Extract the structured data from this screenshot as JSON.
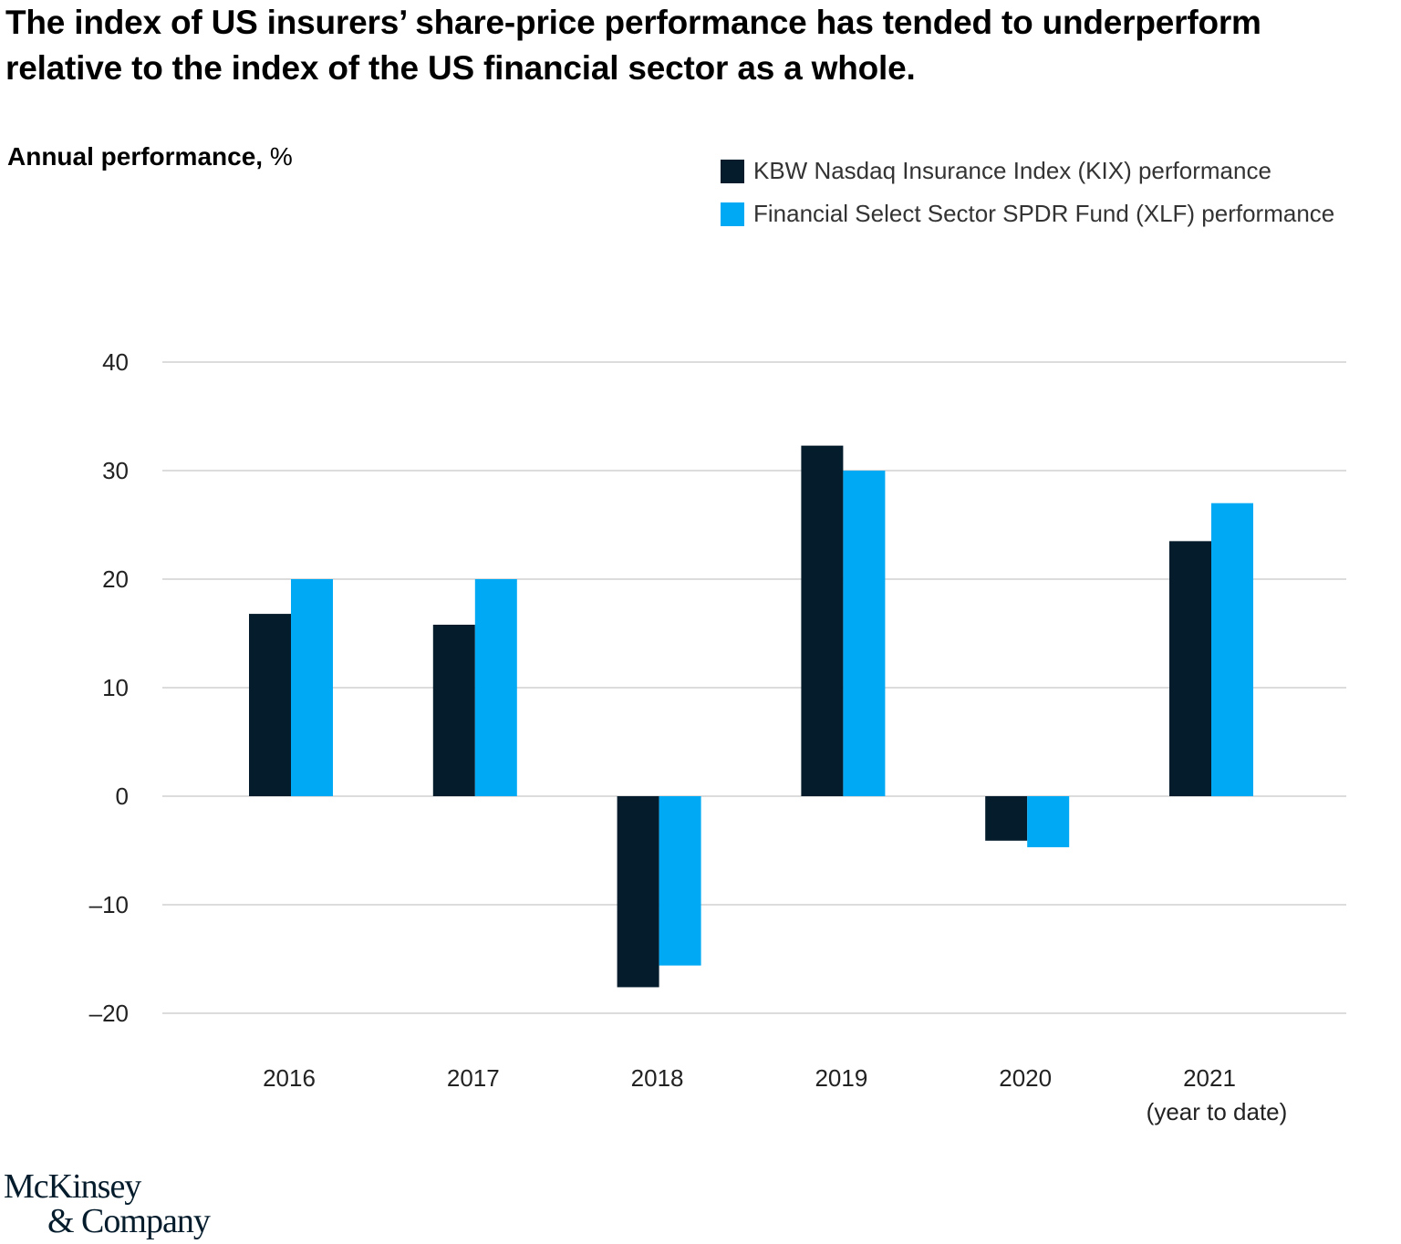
{
  "header": {
    "title": "The index of US insurers’ share-price performance has tended to underperform relative to the index of the US financial sector as a whole.",
    "subtitle_bold": "Annual performance,",
    "subtitle_unit": "%"
  },
  "legend": [
    {
      "label": "KBW Nasdaq Insurance Index (KIX) performance",
      "color": "#051c2c"
    },
    {
      "label": "Financial Select Sector SPDR Fund (XLF) performance",
      "color": "#00a9f4"
    }
  ],
  "chart_data": {
    "type": "bar",
    "categories": [
      "2016",
      "2017",
      "2018",
      "2019",
      "2020",
      "2021"
    ],
    "category_sublabels": [
      "",
      "",
      "",
      "",
      "",
      "(year to date)"
    ],
    "series": [
      {
        "name": "KBW Nasdaq Insurance Index (KIX) performance",
        "color": "#051c2c",
        "values": [
          16.8,
          15.8,
          -17.6,
          32.3,
          -4.1,
          23.5
        ]
      },
      {
        "name": "Financial Select Sector SPDR Fund (XLF) performance",
        "color": "#00a9f4",
        "values": [
          20.0,
          20.0,
          -15.6,
          30.0,
          -4.7,
          27.0
        ]
      }
    ],
    "yticks": [
      40,
      30,
      20,
      10,
      0,
      -10,
      -20
    ],
    "ytick_labels": [
      "40",
      "30",
      "20",
      "10",
      "0",
      "–10",
      "–20"
    ],
    "ylim": [
      -20,
      40
    ],
    "grid": true,
    "legend_position": "top-right"
  },
  "logo": {
    "line1": "McKinsey",
    "line2": "& Company"
  }
}
